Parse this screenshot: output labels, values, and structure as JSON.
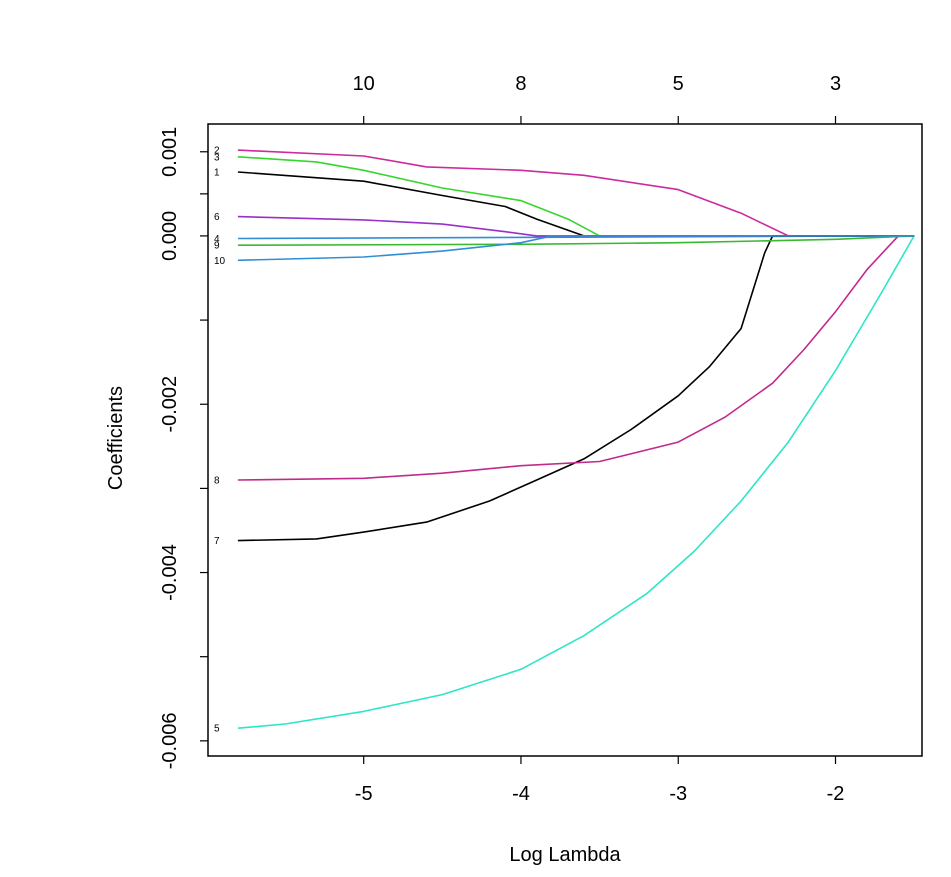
{
  "chart_data": {
    "type": "line",
    "title": "",
    "xlabel": "Log Lambda",
    "ylabel": "Coefficients",
    "xlim": [
      -5.99,
      -1.45
    ],
    "ylim": [
      -0.00618,
      0.00133
    ],
    "x_ticks": [
      {
        "value": -5,
        "label": "-5"
      },
      {
        "value": -4,
        "label": "-4"
      },
      {
        "value": -3,
        "label": "-3"
      },
      {
        "value": -2,
        "label": "-2"
      }
    ],
    "y_ticks": [
      {
        "value": 0.001,
        "label": "0.001"
      },
      {
        "value": 0.0005,
        "label": ""
      },
      {
        "value": 0.0,
        "label": "0.000"
      },
      {
        "value": -0.001,
        "label": ""
      },
      {
        "value": -0.002,
        "label": "-0.002"
      },
      {
        "value": -0.003,
        "label": ""
      },
      {
        "value": -0.004,
        "label": "-0.004"
      },
      {
        "value": -0.005,
        "label": ""
      },
      {
        "value": -0.006,
        "label": "-0.006"
      }
    ],
    "top_ticks": [
      {
        "value": -5,
        "label": "10"
      },
      {
        "value": -4,
        "label": "8"
      },
      {
        "value": -3,
        "label": "5"
      },
      {
        "value": -2,
        "label": "3"
      }
    ],
    "grid": false,
    "series": [
      {
        "label": "1",
        "color": "#000000",
        "x": [
          -5.8,
          -5.0,
          -4.5,
          -4.1,
          -3.9,
          -3.6,
          -1.5
        ],
        "y": [
          0.00076,
          0.00065,
          0.00048,
          0.00035,
          0.0002,
          0.0,
          0.0
        ]
      },
      {
        "label": "2",
        "color": "#cc2a9e",
        "x": [
          -5.8,
          -5.0,
          -4.6,
          -4.0,
          -3.6,
          -3.0,
          -2.6,
          -2.3,
          -1.5
        ],
        "y": [
          0.00102,
          0.00095,
          0.00082,
          0.00078,
          0.00072,
          0.00055,
          0.00027,
          0.0,
          0.0
        ]
      },
      {
        "label": "3",
        "color": "#36d62c",
        "x": [
          -5.8,
          -5.3,
          -5.0,
          -4.5,
          -4.0,
          -3.7,
          -3.5,
          -1.5
        ],
        "y": [
          0.00094,
          0.00088,
          0.00078,
          0.00057,
          0.00042,
          0.0002,
          0.0,
          0.0
        ]
      },
      {
        "label": "4",
        "color": "#2f8fd6",
        "x": [
          -5.8,
          -1.5
        ],
        "y": [
          -3e-05,
          0.0
        ]
      },
      {
        "label": "5",
        "color": "#2ee5c8",
        "x": [
          -5.8,
          -5.5,
          -5.0,
          -4.5,
          -4.0,
          -3.6,
          -3.2,
          -2.9,
          -2.6,
          -2.3,
          -2.0,
          -1.7,
          -1.5
        ],
        "y": [
          -0.00585,
          -0.0058,
          -0.00565,
          -0.00545,
          -0.00515,
          -0.00475,
          -0.00425,
          -0.00375,
          -0.00315,
          -0.00245,
          -0.0016,
          -0.00065,
          0.0
        ]
      },
      {
        "label": "6",
        "color": "#9b30c9",
        "x": [
          -5.8,
          -5.0,
          -4.5,
          -4.1,
          -3.9,
          -1.5
        ],
        "y": [
          0.00023,
          0.00019,
          0.00014,
          5e-05,
          0.0,
          0.0
        ]
      },
      {
        "label": "7",
        "color": "#000000",
        "x": [
          -5.8,
          -5.3,
          -5.0,
          -4.6,
          -4.2,
          -3.9,
          -3.6,
          -3.3,
          -3.0,
          -2.8,
          -2.6,
          -2.45,
          -2.4,
          -1.5
        ],
        "y": [
          -0.00362,
          -0.0036,
          -0.00352,
          -0.0034,
          -0.00315,
          -0.0029,
          -0.00265,
          -0.0023,
          -0.0019,
          -0.00155,
          -0.0011,
          -0.0002,
          0.0,
          0.0
        ]
      },
      {
        "label": "8",
        "color": "#c02a8c",
        "x": [
          -5.8,
          -5.0,
          -4.5,
          -4.0,
          -3.5,
          -3.0,
          -2.7,
          -2.4,
          -2.2,
          -2.0,
          -1.8,
          -1.65,
          -1.6,
          -1.5
        ],
        "y": [
          -0.0029,
          -0.00288,
          -0.00282,
          -0.00273,
          -0.00268,
          -0.00245,
          -0.00215,
          -0.00175,
          -0.00135,
          -0.0009,
          -0.0004,
          -0.0001,
          0.0,
          0.0
        ]
      },
      {
        "label": "9",
        "color": "#3ab832",
        "x": [
          -5.8,
          -4.0,
          -3.0,
          -2.0,
          -1.5
        ],
        "y": [
          -0.00011,
          -0.0001,
          -8e-05,
          -4e-05,
          0.0
        ]
      },
      {
        "label": "10",
        "color": "#2f8fd6",
        "x": [
          -5.8,
          -5.0,
          -4.5,
          -4.0,
          -3.8,
          -1.5
        ],
        "y": [
          -0.00029,
          -0.00025,
          -0.00018,
          -8e-05,
          0.0,
          0.0
        ]
      }
    ]
  }
}
